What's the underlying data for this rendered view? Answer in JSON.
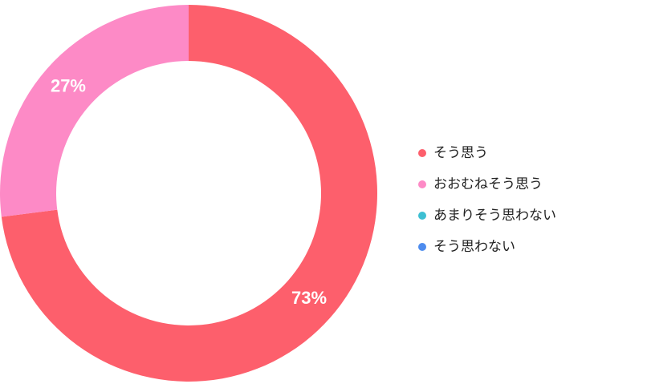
{
  "chart_data": {
    "type": "donut",
    "categories": [
      "そう思う",
      "おおむねそう思う",
      "あまりそう思わない",
      "そう思わない"
    ],
    "values": [
      73,
      27,
      0,
      0
    ],
    "value_labels": [
      "73%",
      "27%",
      null,
      null
    ],
    "colors": [
      "#fd5f6c",
      "#fd8ac6",
      "#3dbfd2",
      "#4e8cee"
    ],
    "legend": "right"
  }
}
